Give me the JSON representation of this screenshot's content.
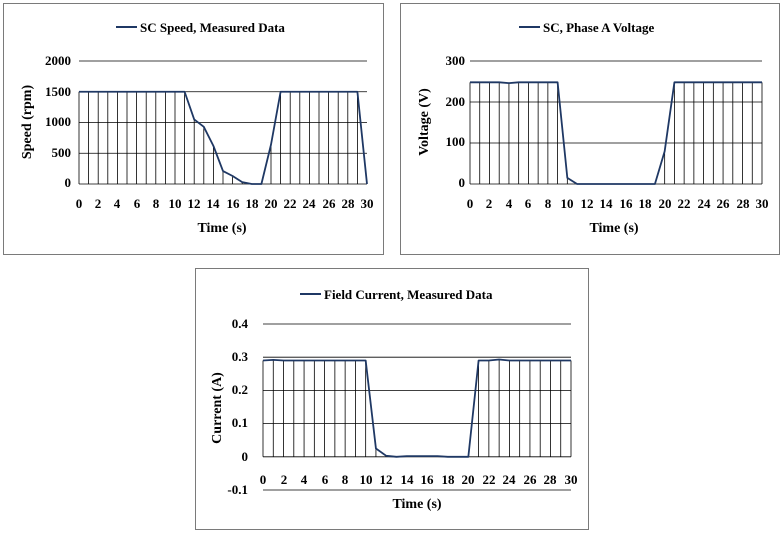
{
  "charts": {
    "chart_0": {
      "title": "SC Speed, Measured Data",
      "xlabel": "Time (s)",
      "ylabel": "Speed (rpm)",
      "y_ticks": [
        "2000",
        "1500",
        "1000",
        "500",
        "0"
      ],
      "x_ticks": [
        "0",
        "2",
        "4",
        "6",
        "8",
        "10",
        "12",
        "14",
        "16",
        "18",
        "20",
        "22",
        "24",
        "26",
        "28",
        "30"
      ]
    },
    "chart_1": {
      "title": "SC, Phase A Voltage",
      "xlabel": "Time (s)",
      "ylabel": "Voltage (V)",
      "y_ticks": [
        "300",
        "200",
        "100",
        "0"
      ],
      "x_ticks": [
        "0",
        "2",
        "4",
        "6",
        "8",
        "10",
        "12",
        "14",
        "16",
        "18",
        "20",
        "22",
        "24",
        "26",
        "28",
        "30"
      ]
    },
    "chart_2": {
      "title": "Field Current, Measured Data",
      "xlabel": "Time (s)",
      "ylabel": "Current (A)",
      "y_ticks": [
        "0.4",
        "0.3",
        "0.2",
        "0.1",
        "0",
        "-0.1"
      ],
      "x_ticks": [
        "0",
        "2",
        "4",
        "6",
        "8",
        "10",
        "12",
        "14",
        "16",
        "18",
        "20",
        "22",
        "24",
        "26",
        "28",
        "30"
      ]
    }
  },
  "colors": {
    "series": "#1f3864",
    "grid": "#000000"
  },
  "chart_data": [
    {
      "type": "line",
      "title": "SC Speed, Measured Data",
      "xlabel": "Time (s)",
      "ylabel": "Speed (rpm)",
      "xlim": [
        0,
        30
      ],
      "ylim": [
        0,
        2000
      ],
      "ytick_step": 500,
      "xtick_step": 2,
      "grid": "vertical-per-second-and-horizontal",
      "legend": "top",
      "series": [
        {
          "name": "SC Speed, Measured Data",
          "x": [
            0,
            1,
            2,
            3,
            4,
            5,
            6,
            7,
            8,
            9,
            10,
            11,
            12,
            13,
            14,
            15,
            16,
            17,
            18,
            19,
            20,
            21,
            22,
            23,
            24,
            25,
            26,
            27,
            28,
            29,
            30
          ],
          "y": [
            1500,
            1500,
            1500,
            1500,
            1500,
            1500,
            1500,
            1500,
            1500,
            1500,
            1500,
            1500,
            1050,
            930,
            620,
            210,
            130,
            30,
            0,
            0,
            640,
            1500,
            1500,
            1500,
            1500,
            1500,
            1500,
            1500,
            1500,
            1500,
            0
          ]
        }
      ]
    },
    {
      "type": "line",
      "title": "SC, Phase A Voltage",
      "xlabel": "Time (s)",
      "ylabel": "Voltage (V)",
      "xlim": [
        0,
        30
      ],
      "ylim": [
        0,
        300
      ],
      "ytick_step": 100,
      "xtick_step": 2,
      "grid": "vertical-per-second-and-horizontal",
      "legend": "top",
      "series": [
        {
          "name": "SC, Phase A Voltage",
          "x": [
            0,
            1,
            2,
            3,
            4,
            5,
            6,
            7,
            8,
            9,
            10,
            11,
            12,
            13,
            14,
            15,
            16,
            17,
            18,
            19,
            20,
            21,
            22,
            23,
            24,
            25,
            26,
            27,
            28,
            29,
            30
          ],
          "y": [
            248,
            248,
            248,
            248,
            246,
            248,
            248,
            248,
            248,
            248,
            15,
            0,
            0,
            0,
            0,
            0,
            0,
            0,
            0,
            0,
            80,
            248,
            248,
            248,
            248,
            248,
            248,
            248,
            248,
            248,
            248
          ]
        }
      ]
    },
    {
      "type": "line",
      "title": "Field Current, Measured Data",
      "xlabel": "Time (s)",
      "ylabel": "Current (A)",
      "xlim": [
        0,
        30
      ],
      "ylim": [
        -0.1,
        0.4
      ],
      "ytick_step": 0.1,
      "xtick_step": 2,
      "grid": "vertical-per-second-and-horizontal",
      "legend": "top",
      "series": [
        {
          "name": "Field Current, Measured Data",
          "x": [
            0,
            1,
            2,
            3,
            4,
            5,
            6,
            7,
            8,
            9,
            10,
            11,
            12,
            13,
            14,
            15,
            16,
            17,
            18,
            19,
            20,
            21,
            22,
            23,
            24,
            25,
            26,
            27,
            28,
            29,
            30
          ],
          "y": [
            0.29,
            0.292,
            0.29,
            0.29,
            0.29,
            0.29,
            0.29,
            0.29,
            0.29,
            0.29,
            0.29,
            0.025,
            0.003,
            0.0,
            0.002,
            0.002,
            0.002,
            0.002,
            0.0,
            0.0,
            0.0,
            0.29,
            0.29,
            0.293,
            0.29,
            0.29,
            0.29,
            0.29,
            0.29,
            0.29,
            0.29
          ]
        }
      ]
    }
  ]
}
